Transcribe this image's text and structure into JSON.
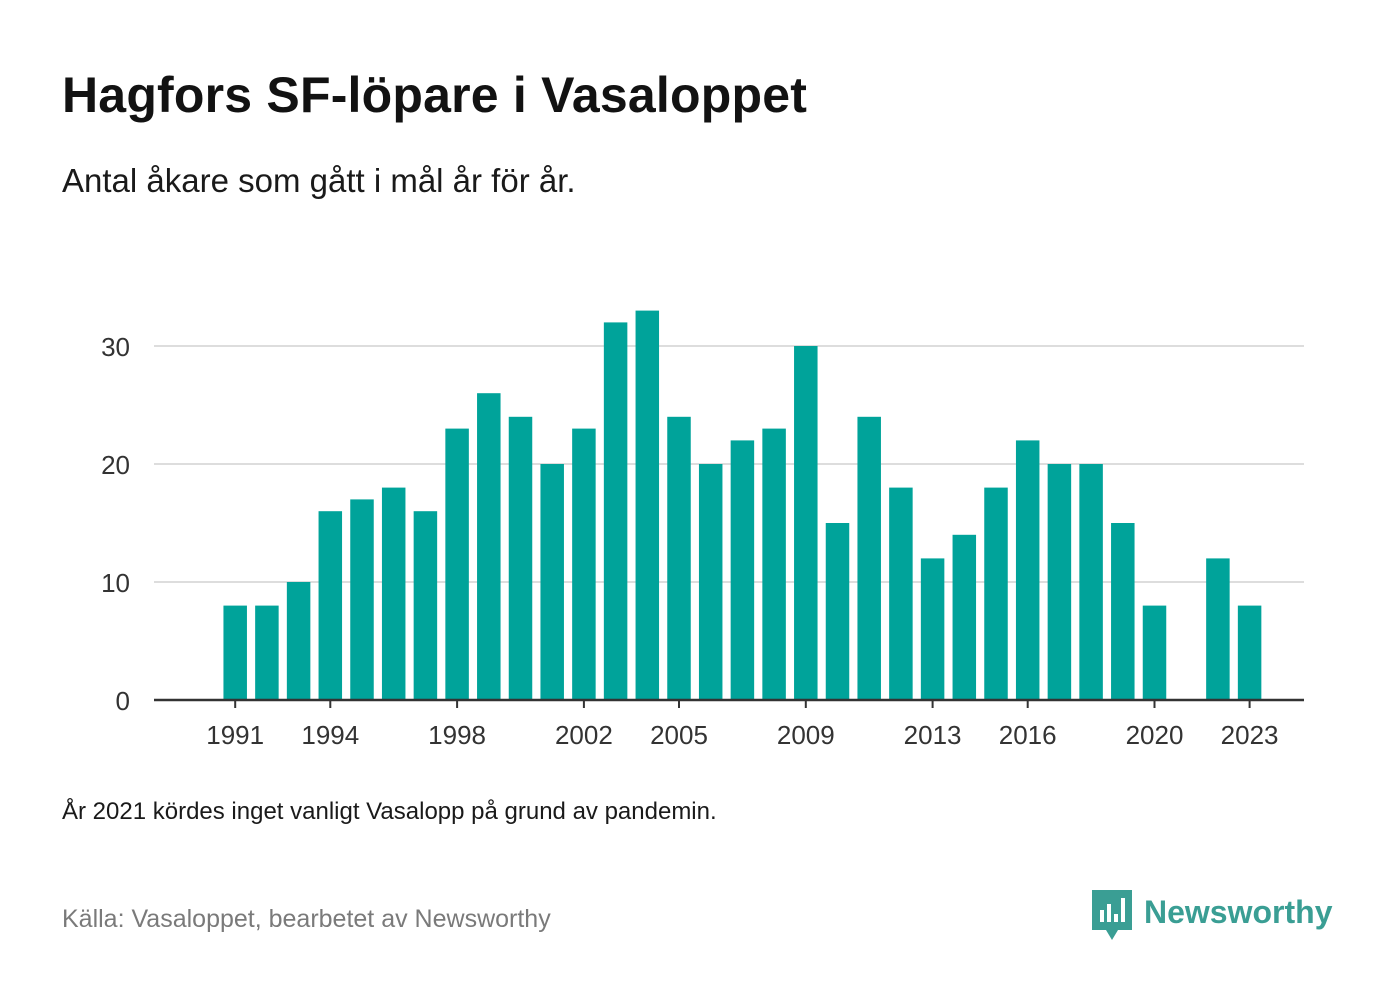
{
  "title": "Hagfors SF-löpare i Vasaloppet",
  "subtitle": "Antal åkare som gått i mål år för år.",
  "note": "År 2021 kördes inget vanligt Vasalopp på grund av pandemin.",
  "source": "Källa: Vasaloppet, bearbetet av Newsworthy",
  "brand": {
    "name": "Newsworthy",
    "icon": "newsworthy-logo-icon",
    "color": "#3a9e94"
  },
  "colors": {
    "bar": "#00a39a",
    "grid": "#dddddd",
    "axis": "#333333",
    "tick_text": "#333333"
  },
  "chart_data": {
    "type": "bar",
    "title": "Hagfors SF-löpare i Vasaloppet",
    "subtitle": "Antal åkare som gått i mål år för år.",
    "xlabel": "",
    "ylabel": "",
    "ylim": [
      0,
      35
    ],
    "xlim": [
      1990,
      2025
    ],
    "grid": true,
    "yticks": [
      0,
      10,
      20,
      30
    ],
    "xticks": [
      1991,
      1994,
      1998,
      2002,
      2005,
      2009,
      2013,
      2016,
      2020,
      2023
    ],
    "x": [
      1991,
      1992,
      1993,
      1994,
      1995,
      1996,
      1997,
      1998,
      1999,
      2000,
      2001,
      2002,
      2003,
      2004,
      2005,
      2006,
      2007,
      2008,
      2009,
      2010,
      2011,
      2012,
      2013,
      2014,
      2015,
      2016,
      2017,
      2018,
      2019,
      2020,
      2022,
      2023
    ],
    "values": [
      8,
      8,
      10,
      16,
      17,
      18,
      16,
      23,
      26,
      24,
      20,
      23,
      32,
      33,
      24,
      20,
      22,
      23,
      30,
      15,
      24,
      18,
      12,
      14,
      18,
      22,
      20,
      20,
      15,
      8,
      12,
      8
    ]
  }
}
